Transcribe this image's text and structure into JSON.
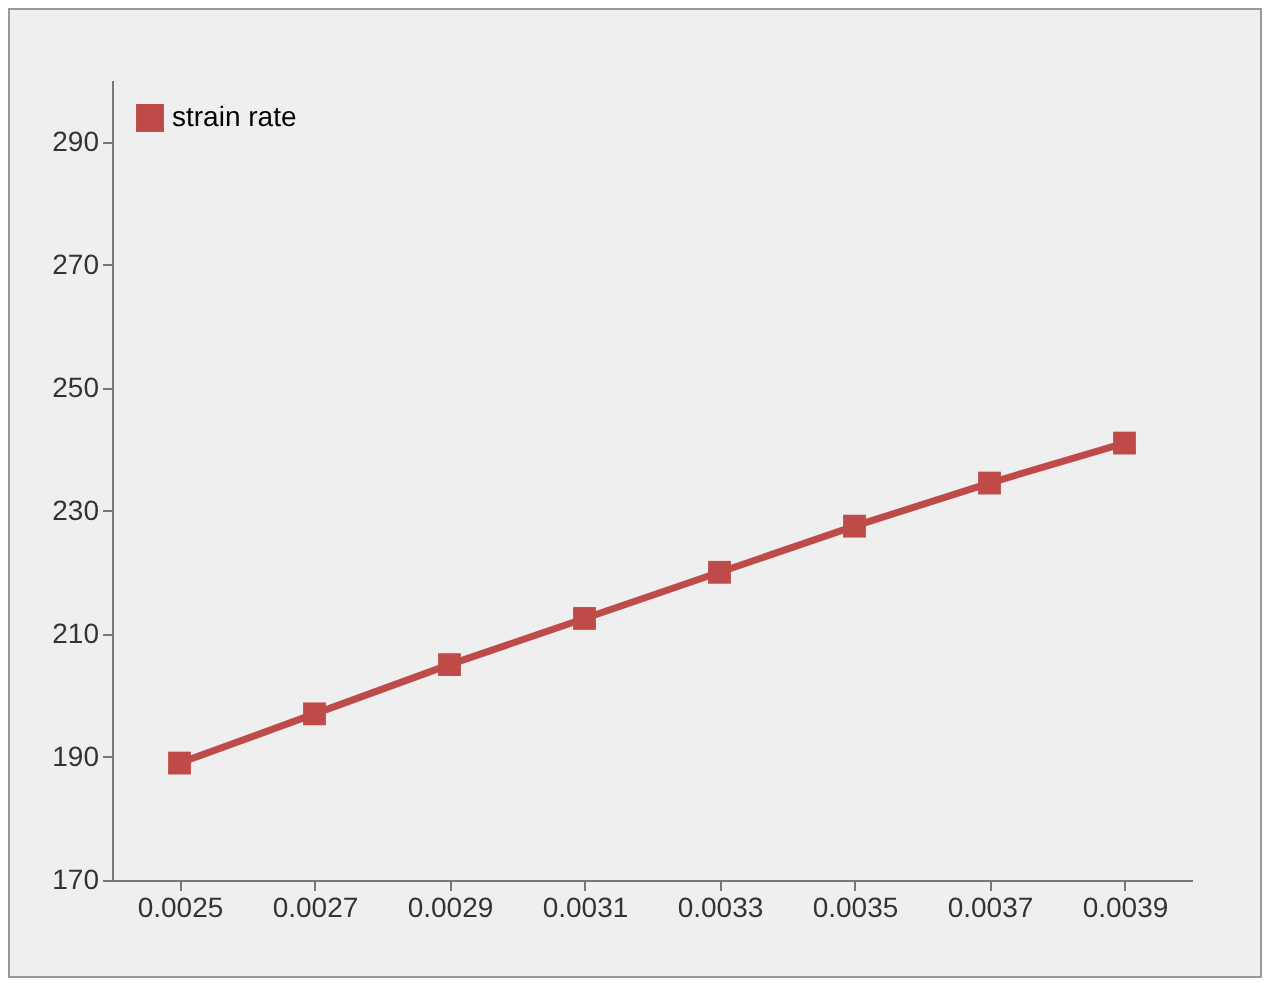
{
  "chart_data": {
    "type": "line",
    "categories": [
      "0.0025",
      "0.0027",
      "0.0029",
      "0.0031",
      "0.0033",
      "0.0035",
      "0.0037",
      "0.0039"
    ],
    "series": [
      {
        "name": "strain rate",
        "color": "#be4b48",
        "values": [
          189,
          197,
          205,
          212.5,
          220,
          227.5,
          234.5,
          241
        ]
      }
    ],
    "ylim": [
      170,
      300
    ],
    "yticks": [
      170,
      190,
      210,
      230,
      250,
      270,
      290
    ],
    "grid": false,
    "legend": "top left",
    "marker": "square",
    "line_style": "solid"
  }
}
